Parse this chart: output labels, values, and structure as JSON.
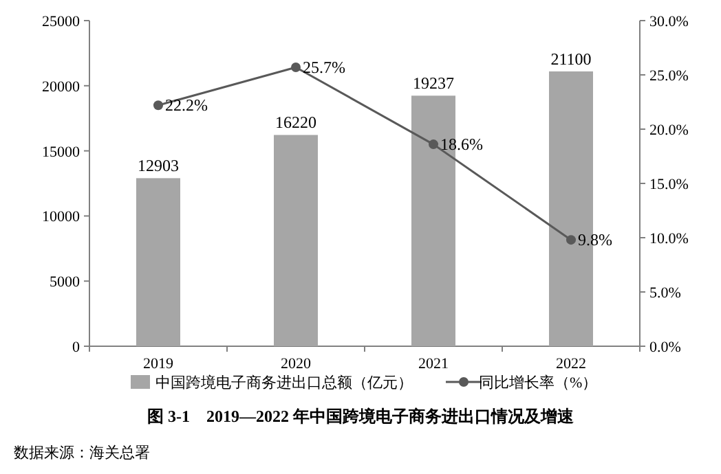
{
  "chart_data": {
    "type": "bar",
    "title": "图 3-1　2019—2022 年中国跨境电子商务进出口情况及增速",
    "annotations": [
      "数据来源：海关总署"
    ],
    "categories": [
      "2019",
      "2020",
      "2021",
      "2022"
    ],
    "series": [
      {
        "name": "中国跨境电子商务进出口总额（亿元）",
        "color": "#a6a6a6",
        "values": [
          12903,
          16220,
          19237,
          21100
        ],
        "value_labels": [
          "12903",
          "16220",
          "19237",
          "21100"
        ]
      },
      {
        "name": "同比增长率（%）",
        "type": "line",
        "axis": "y2",
        "color": "#595959",
        "values": [
          22.2,
          25.7,
          18.6,
          9.8
        ],
        "value_labels": [
          "22.2%",
          "25.7%",
          "18.6%",
          "9.8%"
        ]
      }
    ],
    "ylim": [
      0,
      25000
    ],
    "yticks": [
      0,
      5000,
      10000,
      15000,
      20000,
      25000
    ],
    "y2lim": [
      0,
      30
    ],
    "y2ticks": [
      {
        "value": 0,
        "label": "0.0%"
      },
      {
        "value": 5,
        "label": "5.0%"
      },
      {
        "value": 10,
        "label": "10.0%"
      },
      {
        "value": 15,
        "label": "15.0%"
      },
      {
        "value": 20,
        "label": "20.0%"
      },
      {
        "value": 25,
        "label": "25.0%"
      },
      {
        "value": 30,
        "label": "30.0%"
      }
    ],
    "marker": "circle",
    "grid": false,
    "legend": "bottom"
  }
}
